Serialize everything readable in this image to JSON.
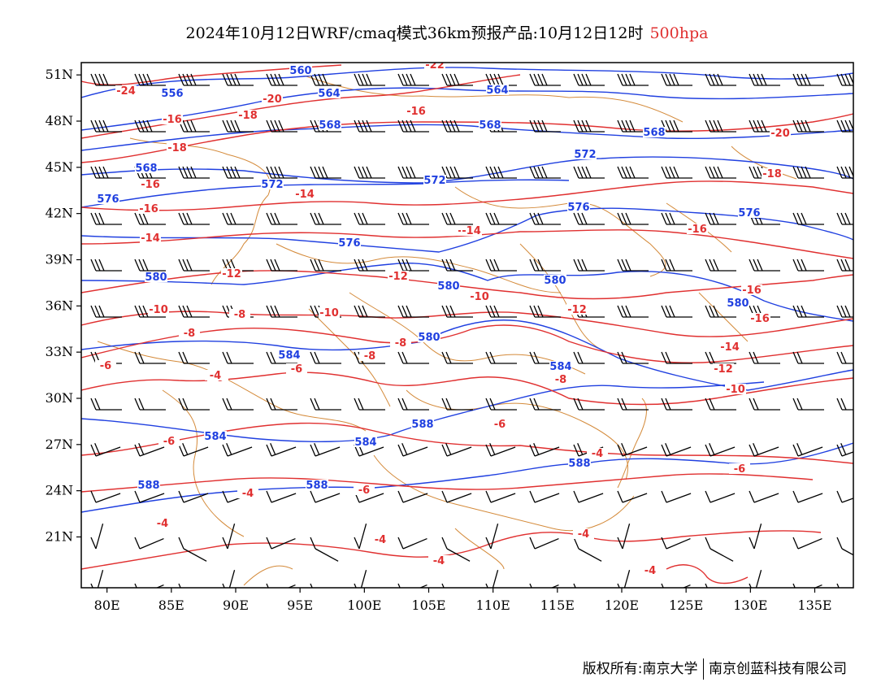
{
  "title": {
    "main": "2024年10月12日WRF/cmaq模式36km预报产品:10月12日12时",
    "level": "500hpa",
    "level_color": "#e03030"
  },
  "map": {
    "lon_range": [
      78,
      138
    ],
    "lat_range": [
      17.7,
      51.8
    ],
    "x_ticks": [
      "80E",
      "85E",
      "90E",
      "95E",
      "100E",
      "105E",
      "110E",
      "115E",
      "120E",
      "125E",
      "130E",
      "135E"
    ],
    "x_tick_values": [
      80,
      85,
      90,
      95,
      100,
      105,
      110,
      115,
      120,
      125,
      130,
      135
    ],
    "y_ticks": [
      "51N",
      "48N",
      "45N",
      "42N",
      "39N",
      "36N",
      "33N",
      "30N",
      "27N",
      "24N",
      "21N"
    ],
    "y_tick_values": [
      51,
      48,
      45,
      42,
      39,
      36,
      33,
      30,
      27,
      24,
      21
    ],
    "colors": {
      "height": "#2040e0",
      "temperature": "#e03030",
      "border": "#d48a3a",
      "wind": "#000000"
    },
    "height_labels": [
      "560",
      "556",
      "564",
      "564",
      "568",
      "568",
      "568",
      "568",
      "572",
      "572",
      "572",
      "576",
      "576",
      "576",
      "576",
      "580",
      "580",
      "580",
      "580",
      "580",
      "584",
      "584",
      "584",
      "584",
      "588",
      "588",
      "588",
      "588"
    ],
    "temp_labels": [
      "-24",
      "-22",
      "-20",
      "-18",
      "-16",
      "-16",
      "-18",
      "-16",
      "-16",
      "-14",
      "-14",
      "-14",
      "-12",
      "-12",
      "-10",
      "-10",
      "-10",
      "-8",
      "-8",
      "-8",
      "-8",
      "-6",
      "-6",
      "-6",
      "-6",
      "-6",
      "-4",
      "-4",
      "-4",
      "-4",
      "-4",
      "-4",
      "-16",
      "-16",
      "-18",
      "-20",
      "-14",
      "-12",
      "-14",
      "-12",
      "-10",
      "-8",
      "-6",
      "-6",
      "-4",
      "-4",
      "-16"
    ]
  },
  "footer": {
    "left": "版权所有:南京大学",
    "right": "南京创蓝科技有限公司"
  }
}
